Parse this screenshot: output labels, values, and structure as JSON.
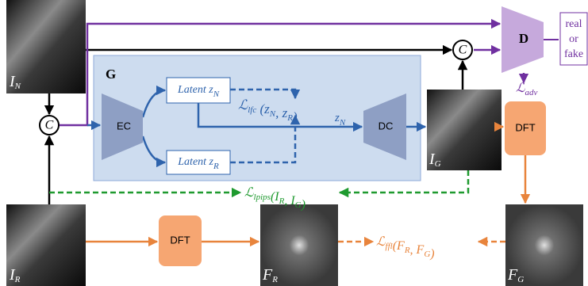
{
  "images": {
    "input_noisy": [
      {
        "t": "I",
        "sub": "N"
      }
    ],
    "input_reference": [
      {
        "t": "I",
        "sub": "R"
      }
    ],
    "generated": [
      {
        "t": "I",
        "sub": "G"
      }
    ],
    "spectrum_reference": [
      {
        "t": "F",
        "sub": "R"
      }
    ],
    "spectrum_generated": [
      {
        "t": "F",
        "sub": "G"
      }
    ]
  },
  "concat_symbol": "C",
  "generator": {
    "label": "G",
    "encoder": "EC",
    "decoder": "DC",
    "latent_n": [
      {
        "t": "Latent z",
        "sub": "N"
      }
    ],
    "latent_r": [
      {
        "t": "Latent z",
        "sub": "R"
      }
    ],
    "latent_flow": [
      {
        "t": "z",
        "sub": "N"
      }
    ],
    "loss_lfc": [
      {
        "t": "ℒ",
        "sub": "lfc"
      },
      {
        "t": " (z",
        "sub": "N"
      },
      {
        "t": ", z",
        "sub": "R"
      },
      {
        "t": ")"
      }
    ]
  },
  "dft_label": "DFT",
  "discriminator": {
    "label": "D",
    "output": [
      "real",
      "or",
      "fake"
    ],
    "loss_adv": [
      {
        "t": "ℒ",
        "sub": "adv"
      }
    ]
  },
  "loss_lpips": [
    {
      "t": "ℒ",
      "sub": "lpips"
    },
    {
      "t": "(I",
      "sub": "R"
    },
    {
      "t": ", I",
      "sub": "G"
    },
    {
      "t": ")"
    }
  ],
  "loss_ffl": [
    {
      "t": "ℒ",
      "sub": "ffl"
    },
    {
      "t": "(F",
      "sub": "R"
    },
    {
      "t": ", F",
      "sub": "G"
    },
    {
      "t": ")"
    }
  ]
}
